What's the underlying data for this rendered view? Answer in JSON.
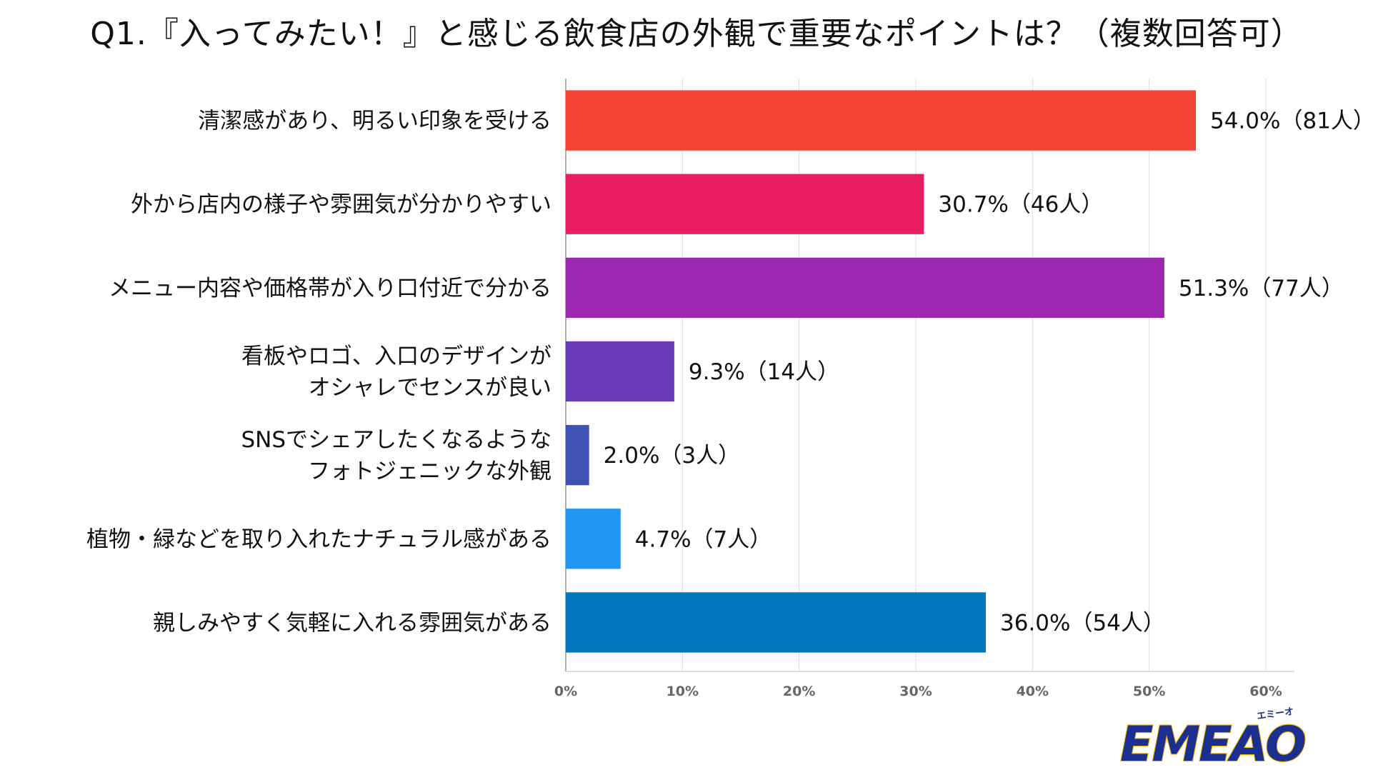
{
  "chart_data": {
    "type": "bar",
    "orientation": "horizontal",
    "title": "Q1.『入ってみたい！』と感じる飲食店の外観で重要なポイントは？（複数回答可）",
    "categories": [
      [
        "清潔感があり、明るい印象を受ける"
      ],
      [
        "外から店内の様子や雰囲気が分かりやすい"
      ],
      [
        "メニュー内容や価格帯が入り口付近で分かる"
      ],
      [
        "看板やロゴ、入口のデザインが",
        "オシャレでセンスが良い"
      ],
      [
        "SNSでシェアしたくなるような",
        "フォトジェニックな外観"
      ],
      [
        "植物・緑などを取り入れたナチュラル感がある"
      ],
      [
        "親しみやすく気軽に入れる雰囲気がある"
      ]
    ],
    "values": [
      54.0,
      30.7,
      51.3,
      9.3,
      2.0,
      4.7,
      36.0
    ],
    "value_labels": [
      "54.0%（81人）",
      "30.7%（46人）",
      "51.3%（77人）",
      "9.3%（14人）",
      "2.0%（3人）",
      "4.7%（7人）",
      "36.0%（54人）"
    ],
    "colors": [
      "#f44336",
      "#e91e63",
      "#9c27b0",
      "#673ab7",
      "#3f51b5",
      "#2196f3",
      "#0277bd"
    ],
    "xlim": [
      0,
      60
    ],
    "x_ticks": [
      "0%",
      "10%",
      "20%",
      "30%",
      "40%",
      "50%",
      "60%"
    ],
    "grid": true,
    "legend": "none"
  },
  "logo": {
    "text": "EMEAO!",
    "ruby": "エミーオ",
    "colors": {
      "main": "#1a2f8f",
      "accent": "#f5b800"
    }
  }
}
